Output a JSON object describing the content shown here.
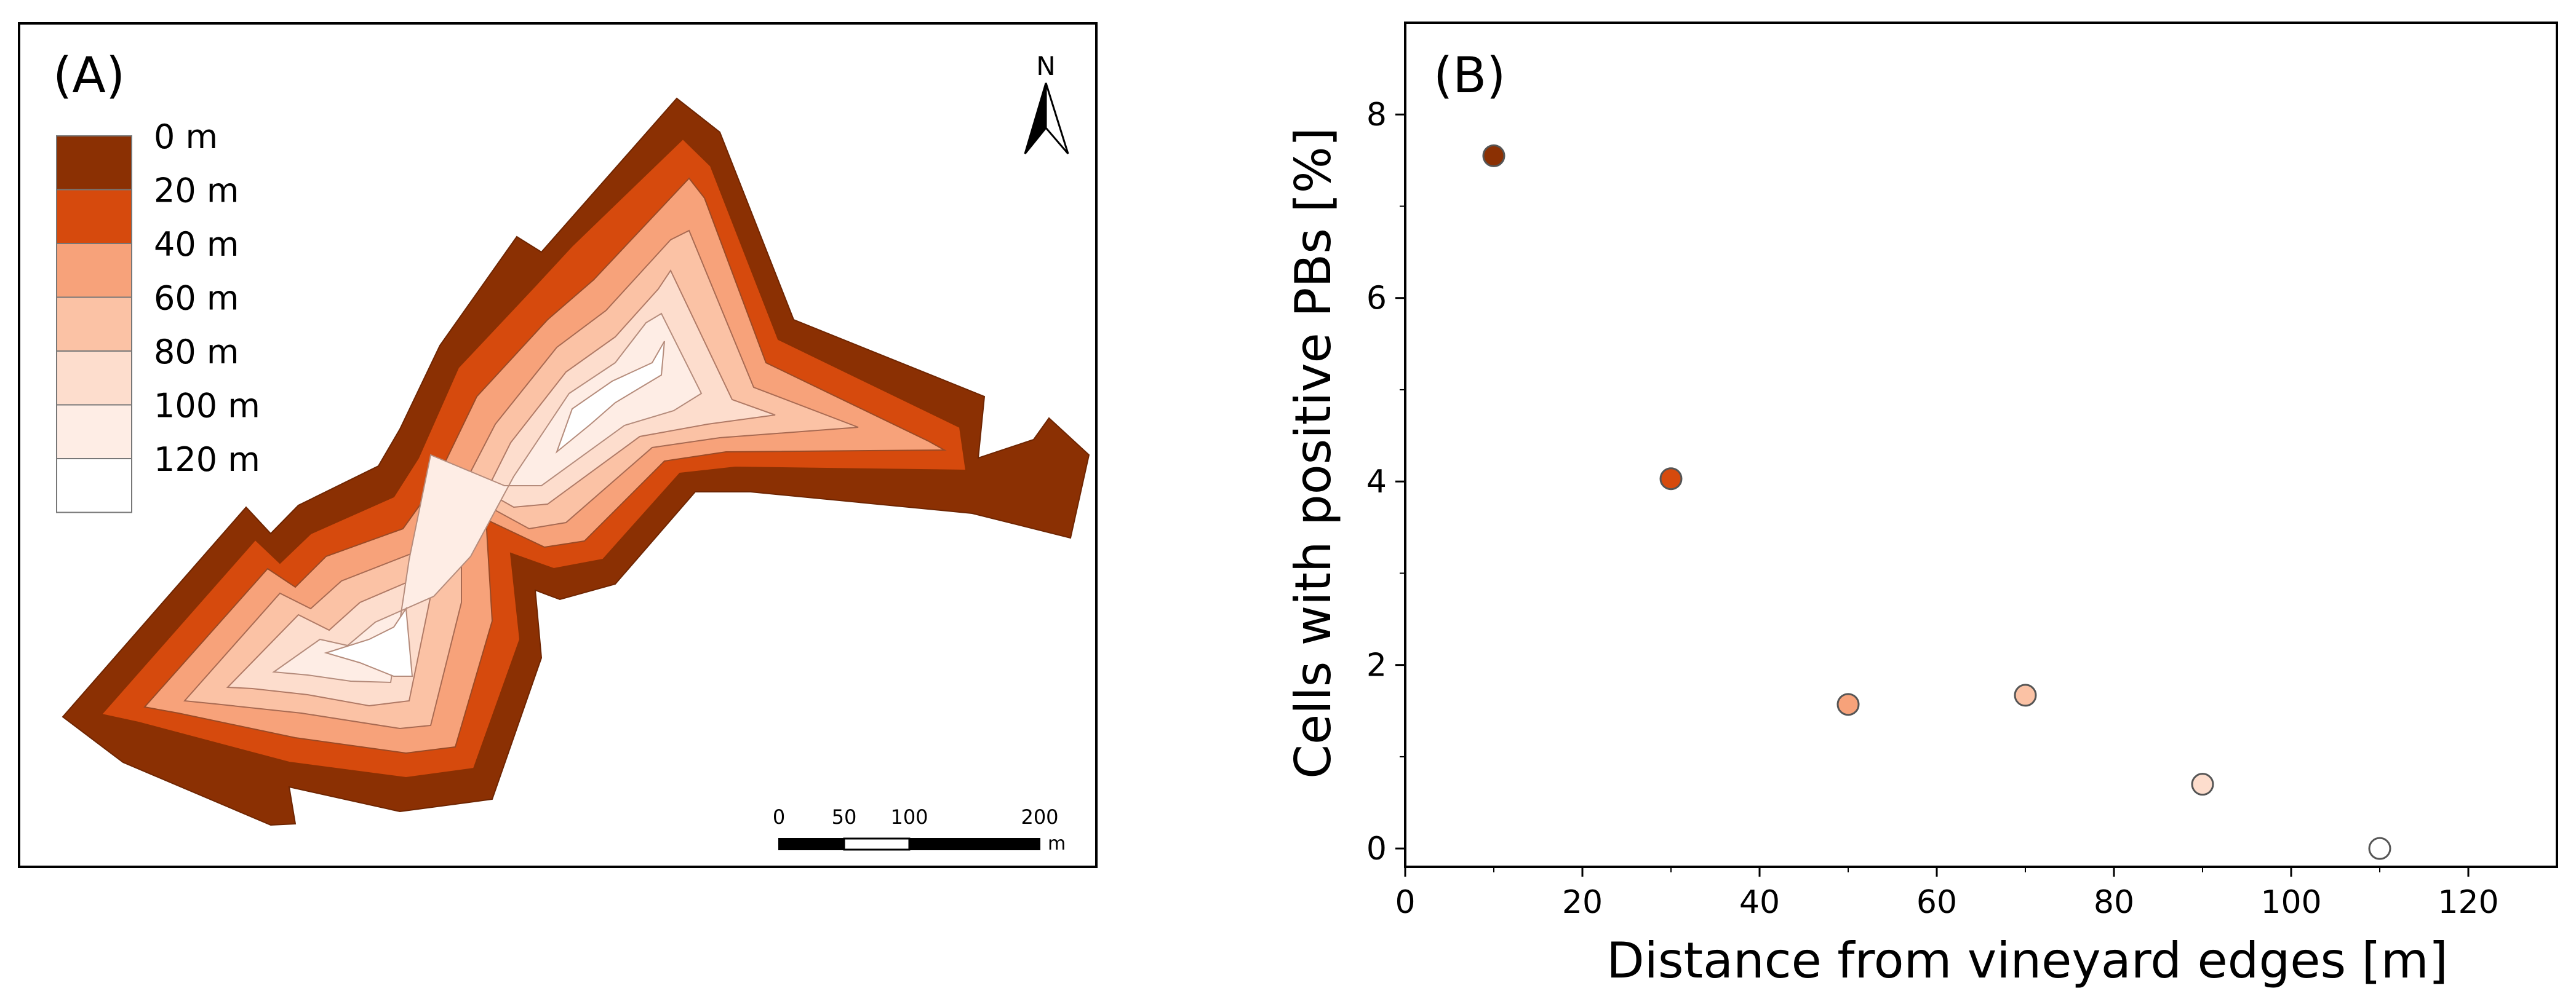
{
  "panel_a": {
    "label": "(A)",
    "legend": [
      {
        "label": "0 m",
        "color": "#8B3003"
      },
      {
        "label": "20 m",
        "color": "#D64A0D"
      },
      {
        "label": "40 m",
        "color": "#F7A27A"
      },
      {
        "label": "60 m",
        "color": "#FBC2A5"
      },
      {
        "label": "80 m",
        "color": "#FDDDCD"
      },
      {
        "label": "100 m",
        "color": "#FEEDE5"
      },
      {
        "label": "120 m",
        "color": "#FFFFFF"
      }
    ],
    "north_label": "N",
    "scale_bar": {
      "ticks": [
        "0",
        "50",
        "100",
        "200"
      ],
      "unit": "m"
    }
  },
  "chart_data": {
    "type": "scatter",
    "panel_label": "(B)",
    "xlabel": "Distance from vineyard edges [m]",
    "ylabel": "Cells with positive PBs [%]",
    "xlim": [
      0,
      130
    ],
    "ylim": [
      -0.2,
      9.0
    ],
    "xticks": [
      0,
      20,
      40,
      60,
      80,
      100,
      120
    ],
    "yticks": [
      0,
      2,
      4,
      6,
      8
    ],
    "grid": false,
    "points": [
      {
        "x": 10,
        "y": 7.55,
        "color": "#8B3003"
      },
      {
        "x": 30,
        "y": 4.03,
        "color": "#D64A0D"
      },
      {
        "x": 50,
        "y": 1.57,
        "color": "#F7A27A"
      },
      {
        "x": 70,
        "y": 1.67,
        "color": "#FBC2A5"
      },
      {
        "x": 90,
        "y": 0.7,
        "color": "#FDDDCD"
      },
      {
        "x": 110,
        "y": 0.0,
        "color": "#FFFFFF"
      }
    ]
  }
}
